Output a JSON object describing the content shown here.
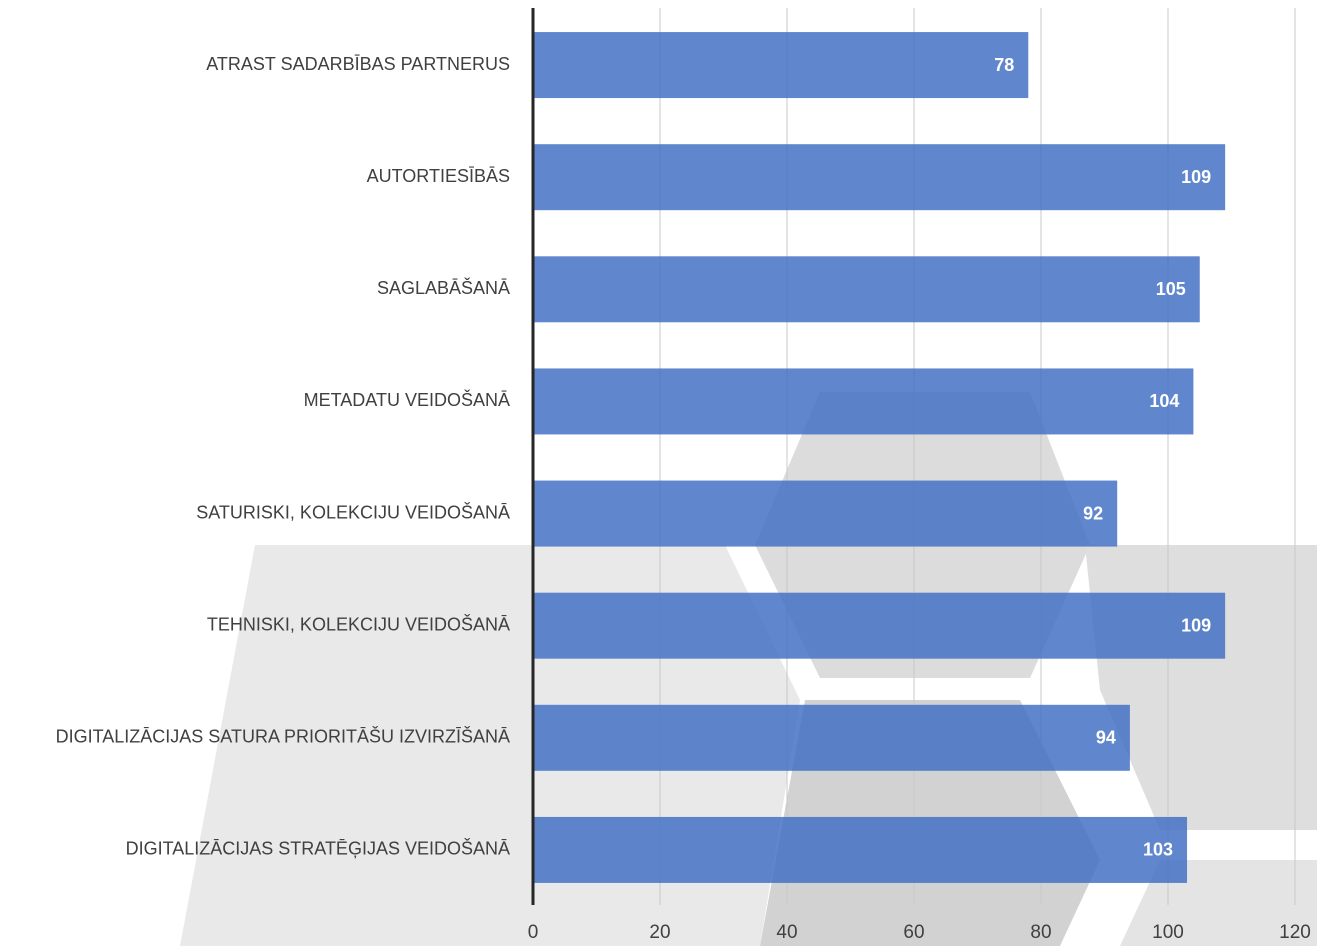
{
  "chart_data": {
    "type": "bar",
    "orientation": "horizontal",
    "categories": [
      "ATRAST SADARBĪBAS PARTNERUS",
      "AUTORTIESĪBĀS",
      "SAGLABĀŠANĀ",
      "METADATU VEIDOŠANĀ",
      "SATURISKI, KOLEKCIJU VEIDOŠANĀ",
      "TEHNISKI, KOLEKCIJU VEIDOŠANĀ",
      "DIGITALIZĀCIJAS SATURA PRIORITĀŠU IZVIRZĪŠANĀ",
      "DIGITALIZĀCIJAS STRATĒĢIJAS VEIDOŠANĀ"
    ],
    "values": [
      78,
      109,
      105,
      104,
      92,
      109,
      94,
      103
    ],
    "color": "#4472c4",
    "xlim": [
      0,
      120
    ],
    "xticks": [
      0,
      20,
      40,
      60,
      80,
      100,
      120
    ],
    "grid": true
  }
}
